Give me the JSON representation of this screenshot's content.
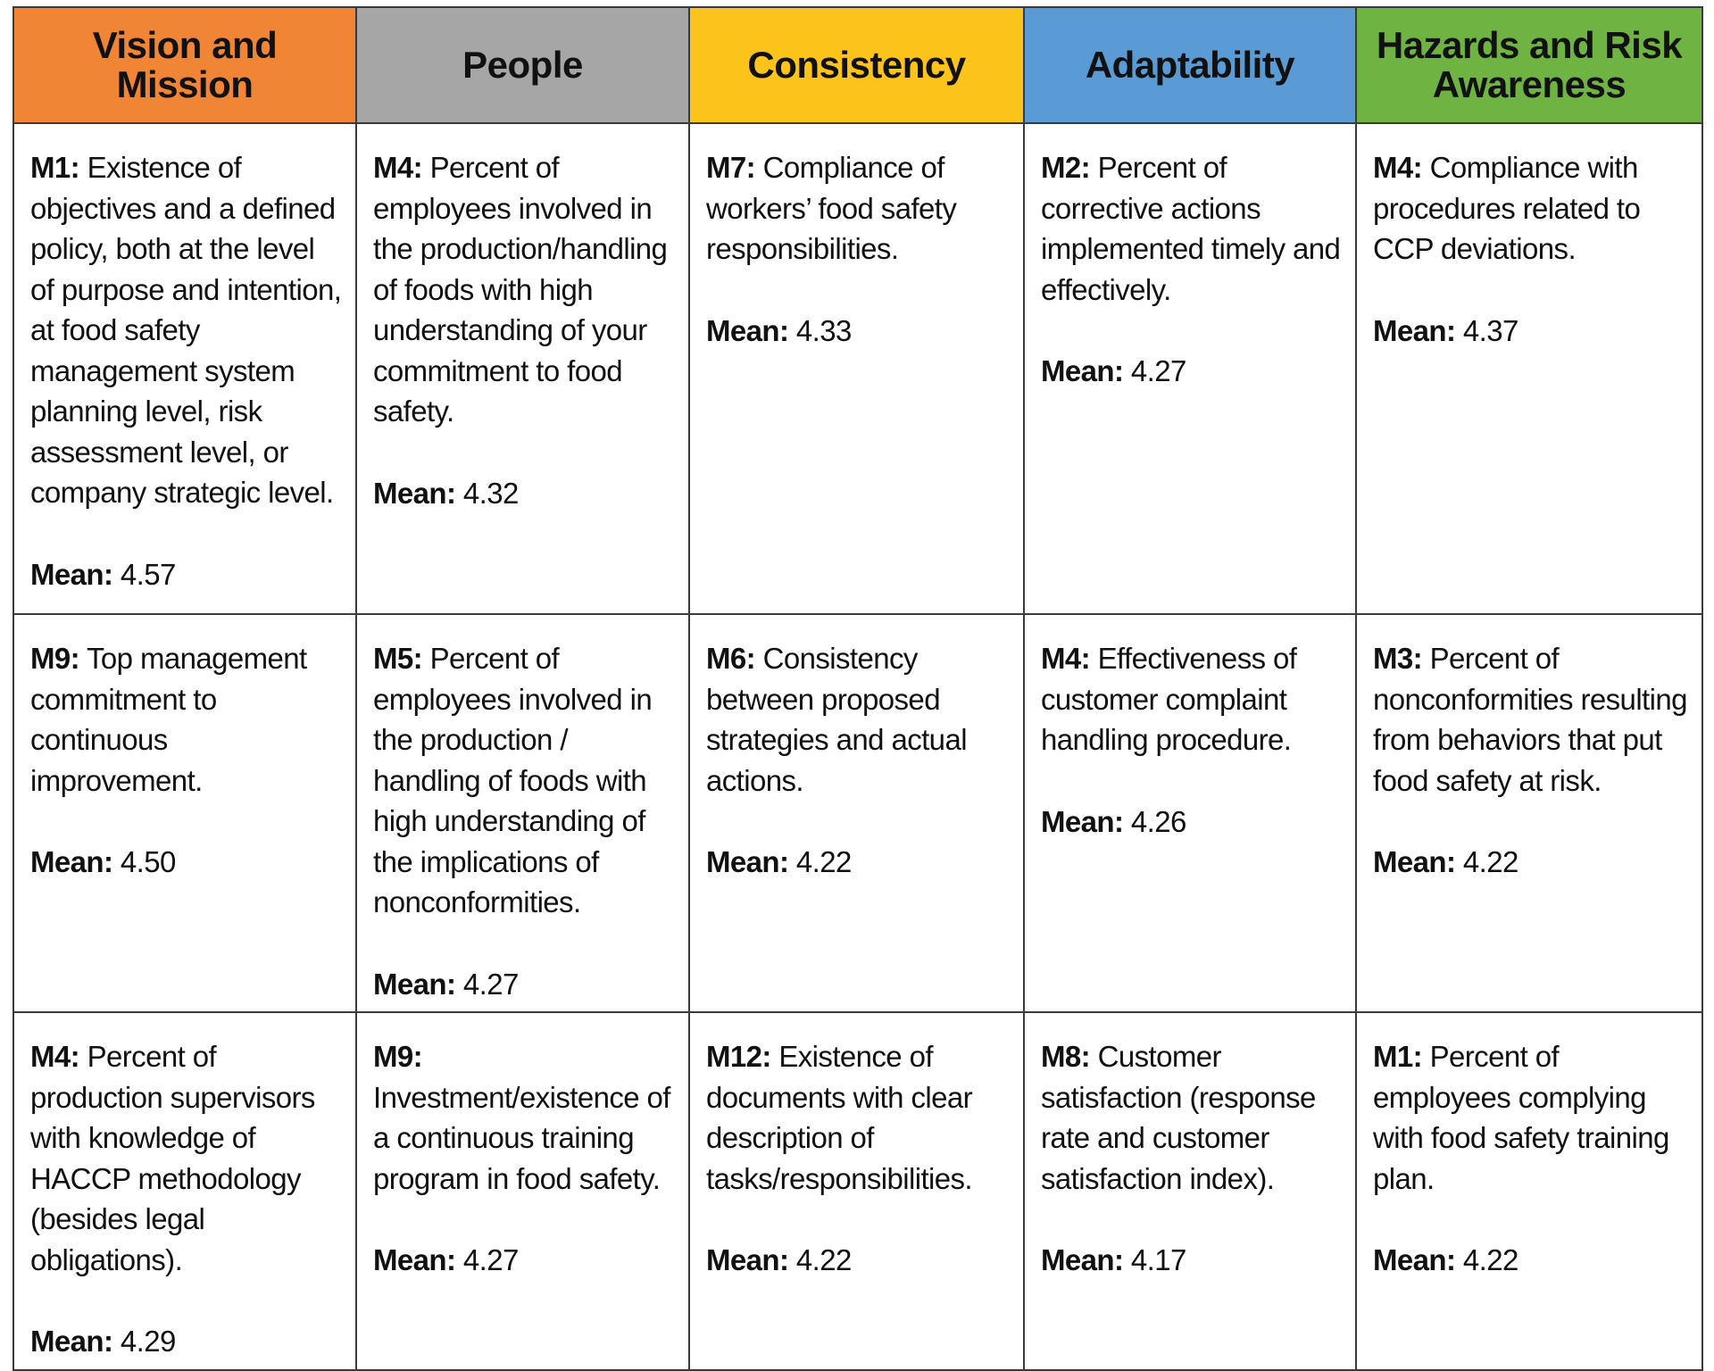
{
  "headers": [
    {
      "label": "Vision and Mission",
      "color": "#ef8535"
    },
    {
      "label": "People",
      "color": "#a6a6a6"
    },
    {
      "label": "Consistency",
      "color": "#fcc31b"
    },
    {
      "label": "Adaptability",
      "color": "#5b9bd5"
    },
    {
      "label": "Hazards and Risk Awareness",
      "color": "#6fb343"
    }
  ],
  "mean_label": "Mean:",
  "rows": [
    [
      {
        "code": "M1:",
        "text": "Existence of objectives and a defined policy, both at the level of purpose and intention, at food safety management system planning level, risk assessment level, or company strategic level.",
        "mean": "4.57"
      },
      {
        "code": "M4:",
        "text": "Percent of employees involved in the production/handling of foods with high understanding of your commitment to food safety.",
        "mean": "4.32"
      },
      {
        "code": "M7:",
        "text": "Compliance of workers’ food safety responsibilities.",
        "mean": "4.33"
      },
      {
        "code": "M2:",
        "text": "Percent of corrective actions implemented timely and effectively.",
        "mean": "4.27"
      },
      {
        "code": "M4:",
        "text": "Compliance with procedures related to CCP deviations.",
        "mean": "4.37"
      }
    ],
    [
      {
        "code": "M9:",
        "text": "Top management commitment to continuous improvement.",
        "mean": "4.50"
      },
      {
        "code": "M5:",
        "text": "Percent of employees involved in the production / handling of foods with high understanding of the implications of nonconformities.",
        "mean": "4.27"
      },
      {
        "code": "M6:",
        "text": "Consistency between proposed strategies and actual actions.",
        "mean": "4.22"
      },
      {
        "code": "M4:",
        "text": "Effectiveness of customer complaint handling procedure.",
        "mean": "4.26"
      },
      {
        "code": "M3:",
        "text": "Percent of nonconformities resulting from behaviors that put food safety at risk.",
        "mean": "4.22"
      }
    ],
    [
      {
        "code": "M4:",
        "text": "Percent of production supervisors with knowledge of HACCP methodology (besides legal obligations).",
        "mean": "4.29"
      },
      {
        "code": "M9:",
        "text": "Investment/existence of a continuous training program in food safety.",
        "mean": "4.27"
      },
      {
        "code": "M12:",
        "text": "Existence of documents with clear description of tasks/responsibilities.",
        "mean": "4.22"
      },
      {
        "code": "M8:",
        "text": "Customer satisfaction (response rate and customer satisfaction index).",
        "mean": "4.17"
      },
      {
        "code": "M1:",
        "text": "Percent of employees complying with food safety training plan.",
        "mean": "4.22"
      }
    ]
  ]
}
